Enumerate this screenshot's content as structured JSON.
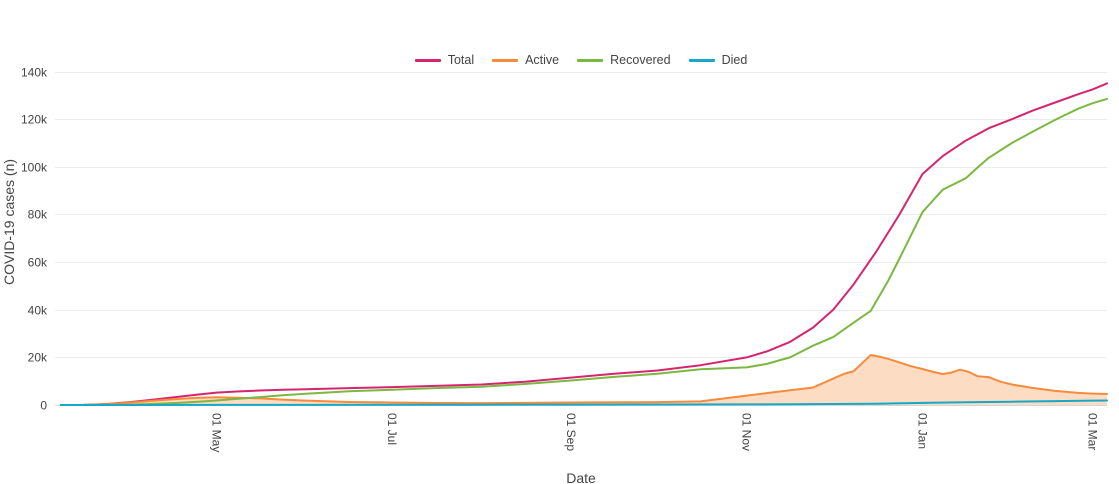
{
  "colors": {
    "background": "#ffffff",
    "axis_text": "#444444",
    "grid": "#eaedef",
    "zero_line": "#d4d7da"
  },
  "chart_data": {
    "type": "line",
    "title": "",
    "xlabel": "Date",
    "ylabel": "COVID-19 cases (n)",
    "x_axis_type": "date",
    "grid": true,
    "legend_position": "top-center",
    "x_range": [
      "2020-03-06",
      "2021-03-06"
    ],
    "ylim": [
      0,
      144000
    ],
    "x_ticks": [
      {
        "date": "2020-05-01",
        "label": "01 May"
      },
      {
        "date": "2020-07-01",
        "label": "01 Jul"
      },
      {
        "date": "2020-09-01",
        "label": "01 Sep"
      },
      {
        "date": "2020-11-01",
        "label": "01 Nov"
      },
      {
        "date": "2021-01-01",
        "label": "01 Jan"
      },
      {
        "date": "2021-03-01",
        "label": "01 Mar"
      }
    ],
    "y_ticks": [
      {
        "value": 0,
        "label": "0"
      },
      {
        "value": 20000,
        "label": "20k"
      },
      {
        "value": 40000,
        "label": "40k"
      },
      {
        "value": 60000,
        "label": "60k"
      },
      {
        "value": 80000,
        "label": "80k"
      },
      {
        "value": 100000,
        "label": "100k"
      },
      {
        "value": 120000,
        "label": "120k"
      },
      {
        "value": 140000,
        "label": "140k"
      }
    ],
    "series": [
      {
        "name": "Total",
        "color": "#d6256e",
        "fill": false,
        "points": [
          [
            "2020-03-08",
            0
          ],
          [
            "2020-03-16",
            60
          ],
          [
            "2020-03-24",
            420
          ],
          [
            "2020-04-01",
            1200
          ],
          [
            "2020-04-08",
            2100
          ],
          [
            "2020-04-16",
            3200
          ],
          [
            "2020-04-24",
            4300
          ],
          [
            "2020-05-01",
            5200
          ],
          [
            "2020-05-08",
            5650
          ],
          [
            "2020-05-16",
            6100
          ],
          [
            "2020-05-24",
            6400
          ],
          [
            "2020-06-01",
            6600
          ],
          [
            "2020-06-16",
            7100
          ],
          [
            "2020-07-01",
            7500
          ],
          [
            "2020-07-16",
            8000
          ],
          [
            "2020-08-01",
            8600
          ],
          [
            "2020-08-16",
            9800
          ],
          [
            "2020-09-01",
            11500
          ],
          [
            "2020-09-16",
            13100
          ],
          [
            "2020-10-01",
            14500
          ],
          [
            "2020-10-16",
            16700
          ],
          [
            "2020-11-01",
            20000
          ],
          [
            "2020-11-08",
            22500
          ],
          [
            "2020-11-16",
            26500
          ],
          [
            "2020-11-24",
            32500
          ],
          [
            "2020-12-01",
            40000
          ],
          [
            "2020-12-08",
            50500
          ],
          [
            "2020-12-16",
            64500
          ],
          [
            "2020-12-24",
            80000
          ],
          [
            "2021-01-01",
            97000
          ],
          [
            "2021-01-08",
            104500
          ],
          [
            "2021-01-16",
            111000
          ],
          [
            "2021-01-24",
            116200
          ],
          [
            "2021-02-01",
            120000
          ],
          [
            "2021-02-08",
            123500
          ],
          [
            "2021-02-16",
            127000
          ],
          [
            "2021-02-24",
            130500
          ],
          [
            "2021-03-01",
            132500
          ],
          [
            "2021-03-06",
            135000
          ]
        ]
      },
      {
        "name": "Active",
        "color": "#f78b3c",
        "fill": true,
        "fill_opacity": 0.3,
        "points": [
          [
            "2020-03-08",
            0
          ],
          [
            "2020-03-16",
            45
          ],
          [
            "2020-03-24",
            330
          ],
          [
            "2020-04-01",
            1040
          ],
          [
            "2020-04-08",
            1680
          ],
          [
            "2020-04-16",
            2380
          ],
          [
            "2020-04-24",
            2970
          ],
          [
            "2020-05-01",
            3270
          ],
          [
            "2020-05-08",
            3080
          ],
          [
            "2020-05-16",
            2760
          ],
          [
            "2020-05-24",
            2250
          ],
          [
            "2020-06-01",
            1850
          ],
          [
            "2020-06-16",
            1250
          ],
          [
            "2020-07-01",
            1040
          ],
          [
            "2020-07-16",
            860
          ],
          [
            "2020-08-01",
            800
          ],
          [
            "2020-08-16",
            900
          ],
          [
            "2020-09-01",
            1050
          ],
          [
            "2020-09-16",
            1150
          ],
          [
            "2020-10-01",
            1200
          ],
          [
            "2020-10-16",
            1500
          ],
          [
            "2020-11-01",
            3950
          ],
          [
            "2020-11-08",
            5000
          ],
          [
            "2020-11-16",
            6200
          ],
          [
            "2020-11-24",
            7300
          ],
          [
            "2020-12-01",
            11100
          ],
          [
            "2020-12-05",
            13200
          ],
          [
            "2020-12-08",
            14100
          ],
          [
            "2020-12-11",
            17500
          ],
          [
            "2020-12-14",
            21000
          ],
          [
            "2020-12-17",
            20300
          ],
          [
            "2020-12-20",
            19400
          ],
          [
            "2020-12-24",
            17900
          ],
          [
            "2020-12-28",
            16300
          ],
          [
            "2021-01-01",
            15100
          ],
          [
            "2021-01-05",
            13800
          ],
          [
            "2021-01-08",
            13000
          ],
          [
            "2021-01-11",
            13600
          ],
          [
            "2021-01-14",
            14800
          ],
          [
            "2021-01-17",
            13900
          ],
          [
            "2021-01-20",
            12100
          ],
          [
            "2021-01-24",
            11700
          ],
          [
            "2021-01-28",
            9800
          ],
          [
            "2021-02-01",
            8600
          ],
          [
            "2021-02-08",
            7200
          ],
          [
            "2021-02-16",
            5900
          ],
          [
            "2021-02-24",
            5100
          ],
          [
            "2021-03-01",
            4800
          ],
          [
            "2021-03-06",
            4600
          ]
        ]
      },
      {
        "name": "Recovered",
        "color": "#7bb842",
        "fill": false,
        "points": [
          [
            "2020-03-08",
            0
          ],
          [
            "2020-03-16",
            10
          ],
          [
            "2020-03-24",
            60
          ],
          [
            "2020-04-01",
            150
          ],
          [
            "2020-04-08",
            400
          ],
          [
            "2020-04-16",
            800
          ],
          [
            "2020-04-24",
            1300
          ],
          [
            "2020-05-01",
            1900
          ],
          [
            "2020-05-08",
            2540
          ],
          [
            "2020-05-16",
            3300
          ],
          [
            "2020-05-24",
            4100
          ],
          [
            "2020-06-01",
            4700
          ],
          [
            "2020-06-16",
            5800
          ],
          [
            "2020-07-01",
            6400
          ],
          [
            "2020-07-16",
            7080
          ],
          [
            "2020-08-01",
            7700
          ],
          [
            "2020-08-16",
            8800
          ],
          [
            "2020-09-01",
            10300
          ],
          [
            "2020-09-16",
            11800
          ],
          [
            "2020-10-01",
            13100
          ],
          [
            "2020-10-16",
            15000
          ],
          [
            "2020-11-01",
            15800
          ],
          [
            "2020-11-08",
            17250
          ],
          [
            "2020-11-16",
            20000
          ],
          [
            "2020-11-24",
            24900
          ],
          [
            "2020-12-01",
            28500
          ],
          [
            "2020-12-08",
            34500
          ],
          [
            "2020-12-14",
            39500
          ],
          [
            "2020-12-20",
            52000
          ],
          [
            "2020-12-24",
            61500
          ],
          [
            "2021-01-01",
            81000
          ],
          [
            "2021-01-08",
            90400
          ],
          [
            "2021-01-12",
            92800
          ],
          [
            "2021-01-16",
            95200
          ],
          [
            "2021-01-20",
            99600
          ],
          [
            "2021-01-24",
            103800
          ],
          [
            "2021-02-01",
            110000
          ],
          [
            "2021-02-08",
            114600
          ],
          [
            "2021-02-16",
            119700
          ],
          [
            "2021-02-24",
            124400
          ],
          [
            "2021-03-01",
            126700
          ],
          [
            "2021-03-06",
            128500
          ]
        ]
      },
      {
        "name": "Died",
        "color": "#16a8c8",
        "fill": false,
        "points": [
          [
            "2020-03-08",
            0
          ],
          [
            "2020-04-01",
            15
          ],
          [
            "2020-05-01",
            35
          ],
          [
            "2020-06-01",
            50
          ],
          [
            "2020-07-01",
            65
          ],
          [
            "2020-08-01",
            110
          ],
          [
            "2020-09-01",
            160
          ],
          [
            "2020-10-01",
            210
          ],
          [
            "2020-11-01",
            260
          ],
          [
            "2020-11-16",
            320
          ],
          [
            "2020-12-01",
            420
          ],
          [
            "2020-12-16",
            560
          ],
          [
            "2021-01-01",
            900
          ],
          [
            "2021-01-16",
            1150
          ],
          [
            "2021-02-01",
            1400
          ],
          [
            "2021-02-16",
            1650
          ],
          [
            "2021-03-01",
            1850
          ],
          [
            "2021-03-06",
            1900
          ]
        ]
      }
    ]
  }
}
